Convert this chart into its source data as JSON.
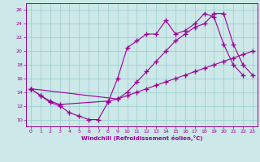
{
  "xlabel": "Windchill (Refroidissement éolien,°C)",
  "xlim": [
    -0.5,
    23.5
  ],
  "ylim": [
    9,
    27
  ],
  "yticks": [
    10,
    12,
    14,
    16,
    18,
    20,
    22,
    24,
    26
  ],
  "xticks": [
    0,
    1,
    2,
    3,
    4,
    5,
    6,
    7,
    8,
    9,
    10,
    11,
    12,
    13,
    14,
    15,
    16,
    17,
    18,
    19,
    20,
    21,
    22,
    23
  ],
  "bg_color": "#cce8e8",
  "line_color": "#990099",
  "grid_color": "#99cccc",
  "line1": {
    "x": [
      0,
      1,
      2,
      3,
      4,
      5,
      6,
      7,
      8,
      9,
      10,
      11,
      12,
      13,
      14,
      15,
      16,
      17,
      18,
      19,
      20,
      21,
      22
    ],
    "y": [
      14.5,
      13.5,
      12.5,
      12.0,
      11.0,
      10.5,
      10.0,
      10.0,
      12.5,
      16.0,
      20.5,
      21.5,
      22.5,
      22.5,
      24.5,
      22.5,
      23.0,
      24.0,
      25.5,
      25.0,
      21.0,
      18.0,
      16.5
    ]
  },
  "line2": {
    "x": [
      0,
      1,
      2,
      3,
      8,
      9,
      10,
      11,
      12,
      13,
      14,
      15,
      16,
      17,
      18,
      19,
      20,
      21,
      22,
      23
    ],
    "y": [
      14.5,
      13.5,
      12.7,
      12.2,
      12.7,
      13.0,
      13.5,
      14.0,
      14.5,
      15.0,
      15.5,
      16.0,
      16.5,
      17.0,
      17.5,
      18.0,
      18.5,
      19.0,
      19.5,
      20.0
    ]
  },
  "line3": {
    "x": [
      0,
      9,
      10,
      11,
      12,
      13,
      14,
      15,
      16,
      17,
      18,
      19,
      20,
      21,
      22,
      23
    ],
    "y": [
      14.5,
      13.0,
      14.0,
      15.5,
      17.0,
      18.5,
      20.0,
      21.5,
      22.5,
      23.5,
      24.0,
      25.5,
      25.5,
      21.0,
      18.0,
      16.5
    ]
  }
}
